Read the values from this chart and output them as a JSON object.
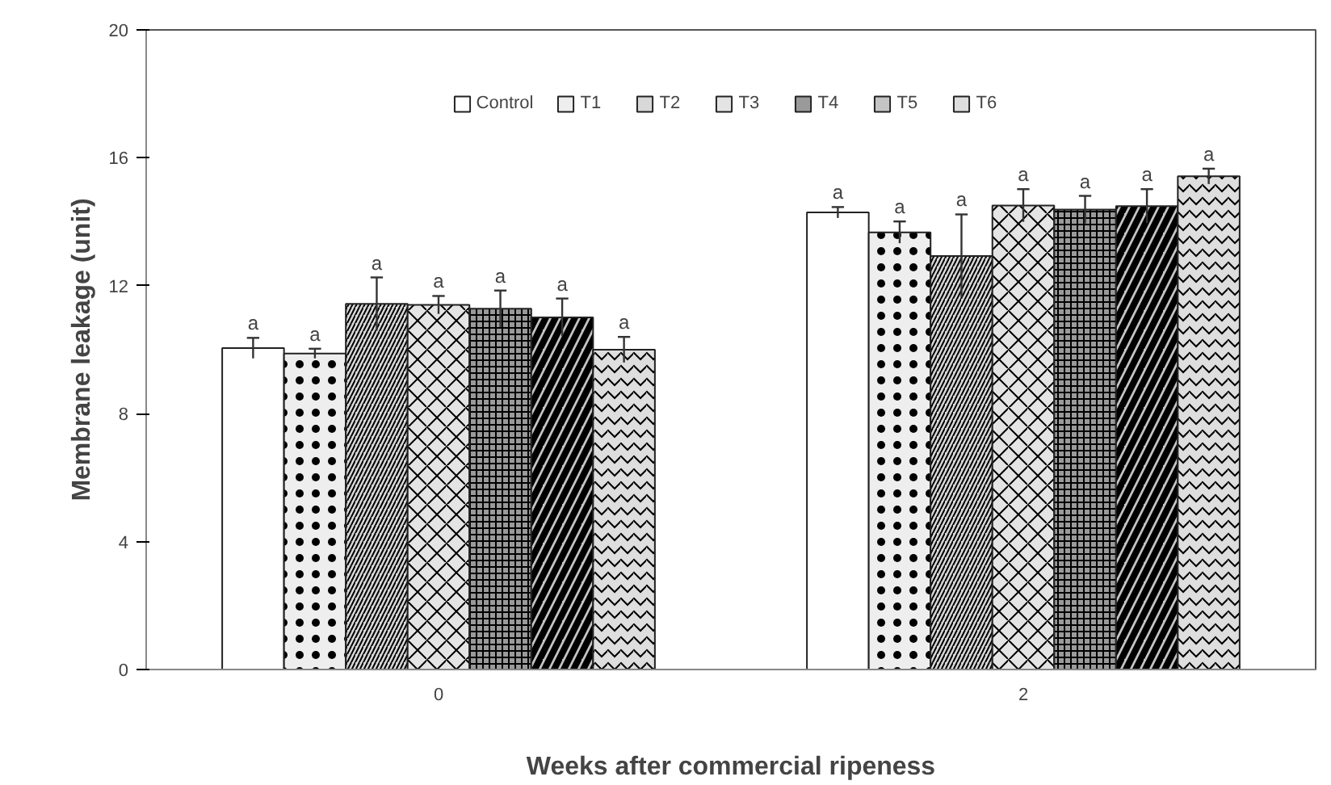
{
  "chart_data": {
    "type": "bar",
    "xlabel": "Weeks after commercial ripeness",
    "ylabel": "Membrane leakage (unit)",
    "categories": [
      "0",
      "2"
    ],
    "series": [
      {
        "name": "Control",
        "color": "#ffffff",
        "values": [
          10.05,
          14.29
        ],
        "errors": [
          0.32,
          0.17
        ],
        "value_labels": [
          "a",
          "a"
        ]
      },
      {
        "name": "T1",
        "color": "#eeeeee",
        "values": [
          9.88,
          13.67
        ],
        "errors": [
          0.15,
          0.34
        ],
        "value_labels": [
          "a",
          "a"
        ]
      },
      {
        "name": "T2",
        "color": "#d8d8d8",
        "values": [
          11.43,
          12.93
        ],
        "errors": [
          0.83,
          1.3
        ],
        "value_labels": [
          "a",
          "a"
        ]
      },
      {
        "name": "T3",
        "color": "#e4e4e4",
        "values": [
          11.4,
          14.51
        ],
        "errors": [
          0.28,
          0.51
        ],
        "value_labels": [
          "a",
          "a"
        ]
      },
      {
        "name": "T4",
        "color": "#9a9a9a",
        "values": [
          11.28,
          14.38
        ],
        "errors": [
          0.57,
          0.43
        ],
        "value_labels": [
          "a",
          "a"
        ]
      },
      {
        "name": "T5",
        "color": "#c4c4c4",
        "values": [
          11.01,
          14.49
        ],
        "errors": [
          0.59,
          0.53
        ],
        "value_labels": [
          "a",
          "a"
        ]
      },
      {
        "name": "T6",
        "color": "#dedede",
        "values": [
          10.0,
          15.42
        ],
        "errors": [
          0.4,
          0.24
        ],
        "value_labels": [
          "a",
          "a"
        ]
      }
    ],
    "ylim": [
      0,
      20
    ],
    "yticks": [
      0,
      4,
      8,
      12,
      16,
      20
    ],
    "grid": false,
    "legend": "top"
  }
}
